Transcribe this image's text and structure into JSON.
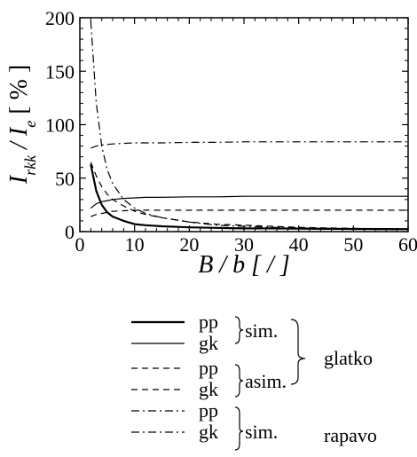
{
  "chart_data": {
    "type": "line",
    "xlabel": "B / b [ / ]",
    "ylabel": "I_rkk / I_e [ % ]",
    "xlim": [
      0,
      60
    ],
    "ylim": [
      0,
      200
    ],
    "xticks": [
      0,
      10,
      20,
      30,
      40,
      50,
      60
    ],
    "yticks": [
      0,
      50,
      100,
      150,
      200
    ],
    "x": [
      2,
      3,
      4,
      5,
      6,
      8,
      10,
      12,
      15,
      20,
      25,
      30,
      35,
      40,
      45,
      50,
      55,
      60
    ],
    "series": [
      {
        "name": "pp",
        "dash": "solid",
        "width": 2.2,
        "values": [
          63,
          38,
          25,
          18,
          14,
          10,
          7,
          6,
          5,
          4,
          3.5,
          3,
          3,
          2.8,
          2.6,
          2.5,
          2.4,
          2.3
        ]
      },
      {
        "name": "gk",
        "dash": "solid",
        "width": 1.2,
        "values": [
          22,
          26,
          28,
          29,
          30,
          31,
          31.5,
          32,
          32,
          32.5,
          32.5,
          33,
          33,
          33,
          33,
          33,
          33,
          33
        ]
      },
      {
        "name": "pp",
        "dash": "dashed",
        "width": 1.2,
        "values": [
          65,
          52,
          42,
          35,
          30,
          24,
          19,
          16,
          13,
          9,
          7,
          6,
          5,
          4,
          3.5,
          3,
          2.5,
          2
        ]
      },
      {
        "name": "gk",
        "dash": "dashed",
        "width": 1.2,
        "values": [
          14,
          16,
          17,
          18,
          19,
          19.5,
          20,
          20,
          20,
          20,
          20,
          20,
          20,
          20,
          20,
          20,
          20,
          20
        ]
      },
      {
        "name": "pp",
        "dash": "dashdot",
        "width": 1.2,
        "values": [
          197,
          120,
          80,
          58,
          45,
          30,
          22,
          17,
          13,
          9,
          6,
          5,
          4,
          3.5,
          3,
          2.5,
          2,
          2
        ]
      },
      {
        "name": "gk",
        "dash": "dashdot",
        "width": 1.2,
        "values": [
          78,
          80,
          81,
          81.5,
          82,
          82.5,
          83,
          83,
          83,
          83.5,
          83.5,
          84,
          84,
          84,
          84,
          84,
          84,
          84
        ]
      }
    ],
    "grid": false,
    "legend": {
      "position": "bottom",
      "entries": [
        {
          "label": "pp",
          "dash": "solid",
          "width": 2.2
        },
        {
          "label": "gk",
          "dash": "solid",
          "width": 1.2
        },
        {
          "label": "pp",
          "dash": "dashed",
          "width": 1.2
        },
        {
          "label": "gk",
          "dash": "dashed",
          "width": 1.2
        },
        {
          "label": "pp",
          "dash": "dashdot",
          "width": 1.2
        },
        {
          "label": "gk",
          "dash": "dashdot",
          "width": 1.2
        }
      ],
      "group_labels": {
        "sim_1": "sim.",
        "asim": "asim.",
        "sim_2": "sim.",
        "glatko": "glatko",
        "rapavo": "rapavo"
      }
    }
  }
}
